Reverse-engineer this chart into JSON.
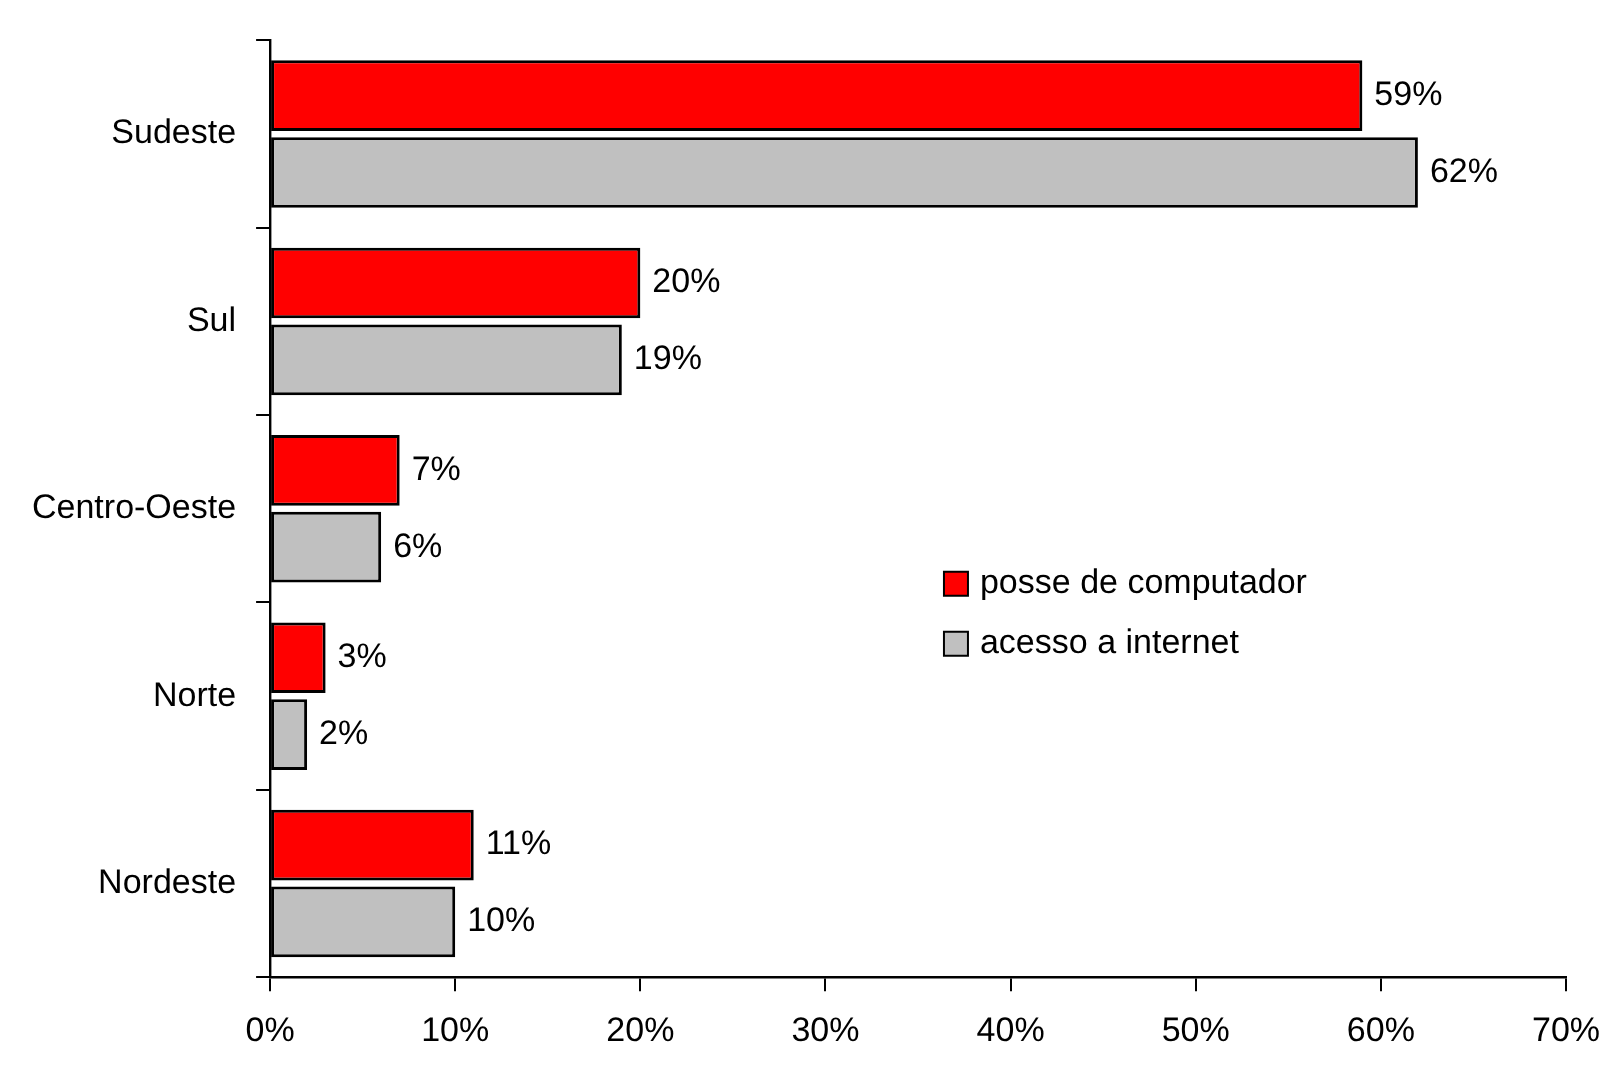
{
  "chart_data": {
    "type": "bar",
    "orientation": "horizontal",
    "categories": [
      "Sudeste",
      "Sul",
      "Centro-Oeste",
      "Norte",
      "Nordeste"
    ],
    "series": [
      {
        "name": "posse de computador",
        "color": "#ff0000",
        "values": [
          59,
          20,
          7,
          3,
          11
        ],
        "value_labels": [
          "59%",
          "20%",
          "7%",
          "3%",
          "11%"
        ]
      },
      {
        "name": "acesso a internet",
        "color": "#c0c0c0",
        "values": [
          62,
          19,
          6,
          2,
          10
        ],
        "value_labels": [
          "62%",
          "19%",
          "6%",
          "2%",
          "10%"
        ]
      }
    ],
    "xlim": [
      0,
      70
    ],
    "xticks": [
      {
        "value": 0,
        "label": "0%"
      },
      {
        "value": 10,
        "label": "10%"
      },
      {
        "value": 20,
        "label": "20%"
      },
      {
        "value": 30,
        "label": "30%"
      },
      {
        "value": 40,
        "label": "40%"
      },
      {
        "value": 50,
        "label": "50%"
      },
      {
        "value": 60,
        "label": "60%"
      },
      {
        "value": 70,
        "label": "70%"
      }
    ],
    "grid": false,
    "legend": "right"
  }
}
